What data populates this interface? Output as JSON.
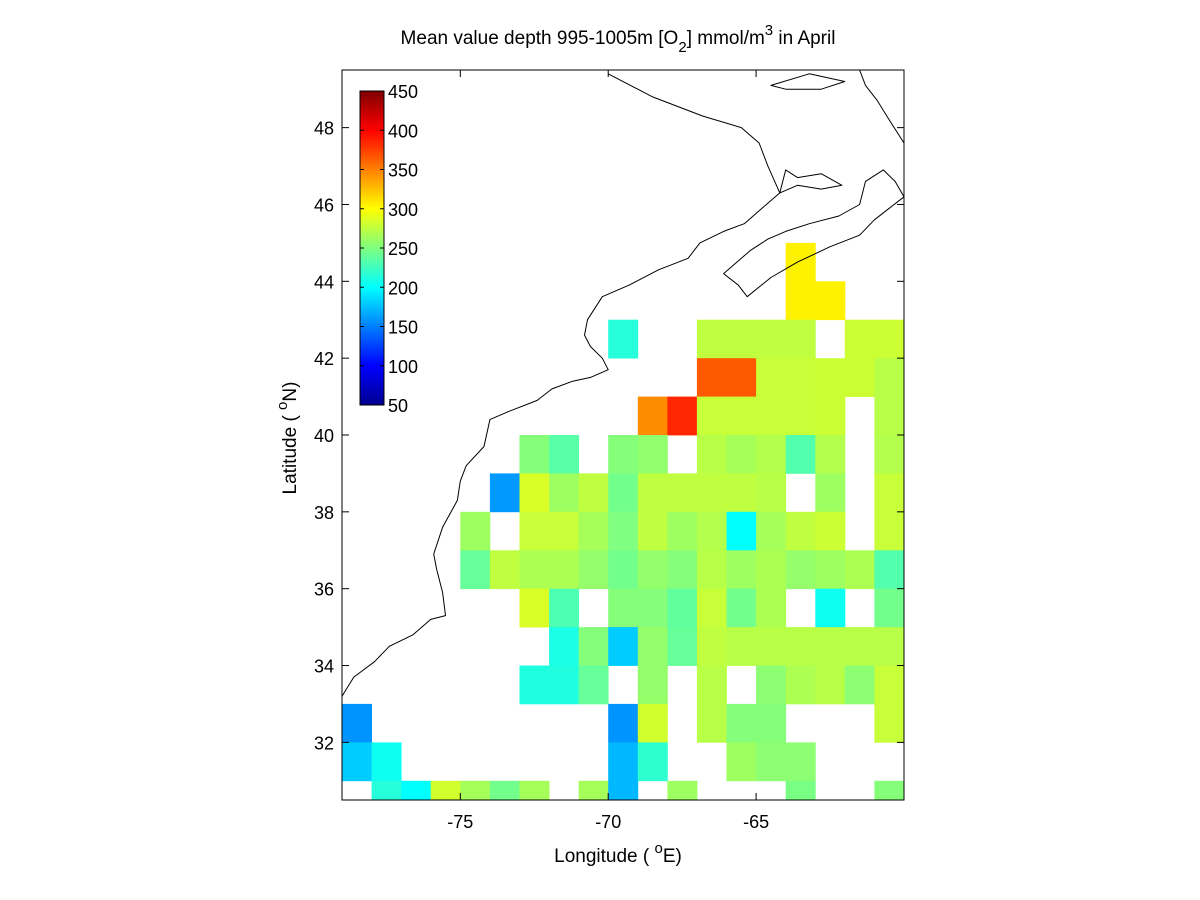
{
  "chart_data": {
    "type": "heatmap",
    "title": {
      "prefix": "Mean value depth 995-1005m [O",
      "sub": "2",
      "mid": "] mmol/m",
      "sup": "3",
      "suffix": " in April"
    },
    "xlabel": {
      "prefix": "Longitude ( ",
      "sup": "o",
      "suffix": "E)"
    },
    "ylabel": {
      "prefix": "Latitude ( ",
      "sup": "o",
      "suffix": "N)"
    },
    "xlim": [
      -79,
      -60
    ],
    "ylim": [
      30.5,
      49.5
    ],
    "xticks": [
      -75,
      -70,
      -65
    ],
    "yticks": [
      32,
      34,
      36,
      38,
      40,
      42,
      44,
      46,
      48
    ],
    "grid": false,
    "colorbar": {
      "placement": "top-left",
      "min": 50,
      "max": 450,
      "ticks": [
        50,
        100,
        150,
        200,
        250,
        300,
        350,
        400,
        450
      ],
      "colormap": "jet"
    },
    "cell_size_deg": 1,
    "cells": [
      [
        -63.5,
        44.5,
        305
      ],
      [
        -63.5,
        43.5,
        305
      ],
      [
        -62.5,
        43.5,
        305
      ],
      [
        -69.5,
        42.5,
        215
      ],
      [
        -66.5,
        42.5,
        275
      ],
      [
        -65.5,
        42.5,
        275
      ],
      [
        -64.5,
        42.5,
        275
      ],
      [
        -63.5,
        42.5,
        275
      ],
      [
        -61.5,
        42.5,
        280
      ],
      [
        -60.5,
        42.5,
        280
      ],
      [
        -66.5,
        41.5,
        365
      ],
      [
        -65.5,
        41.5,
        365
      ],
      [
        -64.5,
        41.5,
        278
      ],
      [
        -63.5,
        41.5,
        278
      ],
      [
        -62.5,
        41.5,
        280
      ],
      [
        -61.5,
        41.5,
        280
      ],
      [
        -60.5,
        41.5,
        272
      ],
      [
        -68.5,
        40.5,
        345
      ],
      [
        -67.5,
        40.5,
        385
      ],
      [
        -66.5,
        40.5,
        278
      ],
      [
        -65.5,
        40.5,
        278
      ],
      [
        -64.5,
        40.5,
        278
      ],
      [
        -63.5,
        40.5,
        278
      ],
      [
        -62.5,
        40.5,
        280
      ],
      [
        -60.5,
        40.5,
        272
      ],
      [
        -72.5,
        39.5,
        252
      ],
      [
        -71.5,
        39.5,
        235
      ],
      [
        -69.5,
        39.5,
        252
      ],
      [
        -68.5,
        39.5,
        257
      ],
      [
        -66.5,
        39.5,
        272
      ],
      [
        -65.5,
        39.5,
        265
      ],
      [
        -64.5,
        39.5,
        270
      ],
      [
        -63.5,
        39.5,
        232
      ],
      [
        -62.5,
        39.5,
        270
      ],
      [
        -60.5,
        39.5,
        270
      ],
      [
        -73.5,
        38.5,
        160
      ],
      [
        -72.5,
        38.5,
        285
      ],
      [
        -71.5,
        38.5,
        262
      ],
      [
        -70.5,
        38.5,
        275
      ],
      [
        -69.5,
        38.5,
        245
      ],
      [
        -68.5,
        38.5,
        275
      ],
      [
        -67.5,
        38.5,
        275
      ],
      [
        -66.5,
        38.5,
        275
      ],
      [
        -65.5,
        38.5,
        275
      ],
      [
        -64.5,
        38.5,
        272
      ],
      [
        -62.5,
        38.5,
        262
      ],
      [
        -60.5,
        38.5,
        278
      ],
      [
        -74.5,
        37.5,
        262
      ],
      [
        -72.5,
        37.5,
        278
      ],
      [
        -71.5,
        37.5,
        278
      ],
      [
        -70.5,
        37.5,
        265
      ],
      [
        -69.5,
        37.5,
        250
      ],
      [
        -68.5,
        37.5,
        275
      ],
      [
        -67.5,
        37.5,
        262
      ],
      [
        -66.5,
        37.5,
        270
      ],
      [
        -65.5,
        37.5,
        200
      ],
      [
        -64.5,
        37.5,
        265
      ],
      [
        -63.5,
        37.5,
        275
      ],
      [
        -62.5,
        37.5,
        280
      ],
      [
        -60.5,
        37.5,
        278
      ],
      [
        -74.5,
        36.5,
        240
      ],
      [
        -73.5,
        36.5,
        275
      ],
      [
        -72.5,
        36.5,
        268
      ],
      [
        -71.5,
        36.5,
        268
      ],
      [
        -70.5,
        36.5,
        258
      ],
      [
        -69.5,
        36.5,
        245
      ],
      [
        -68.5,
        36.5,
        258
      ],
      [
        -67.5,
        36.5,
        252
      ],
      [
        -66.5,
        36.5,
        272
      ],
      [
        -65.5,
        36.5,
        262
      ],
      [
        -64.5,
        36.5,
        268
      ],
      [
        -63.5,
        36.5,
        258
      ],
      [
        -62.5,
        36.5,
        262
      ],
      [
        -61.5,
        36.5,
        268
      ],
      [
        -60.5,
        36.5,
        232
      ],
      [
        -72.5,
        35.5,
        285
      ],
      [
        -71.5,
        35.5,
        230
      ],
      [
        -69.5,
        35.5,
        252
      ],
      [
        -68.5,
        35.5,
        252
      ],
      [
        -67.5,
        35.5,
        238
      ],
      [
        -66.5,
        35.5,
        278
      ],
      [
        -65.5,
        35.5,
        245
      ],
      [
        -64.5,
        35.5,
        268
      ],
      [
        -62.5,
        35.5,
        205
      ],
      [
        -60.5,
        35.5,
        245
      ],
      [
        -71.5,
        34.5,
        210
      ],
      [
        -70.5,
        34.5,
        252
      ],
      [
        -69.5,
        34.5,
        180
      ],
      [
        -68.5,
        34.5,
        258
      ],
      [
        -67.5,
        34.5,
        240
      ],
      [
        -66.5,
        34.5,
        275
      ],
      [
        -65.5,
        34.5,
        272
      ],
      [
        -64.5,
        34.5,
        272
      ],
      [
        -63.5,
        34.5,
        272
      ],
      [
        -62.5,
        34.5,
        272
      ],
      [
        -61.5,
        34.5,
        272
      ],
      [
        -60.5,
        34.5,
        272
      ],
      [
        -72.5,
        33.5,
        212
      ],
      [
        -71.5,
        33.5,
        212
      ],
      [
        -70.5,
        33.5,
        240
      ],
      [
        -68.5,
        33.5,
        258
      ],
      [
        -66.5,
        33.5,
        272
      ],
      [
        -64.5,
        33.5,
        255
      ],
      [
        -63.5,
        33.5,
        268
      ],
      [
        -62.5,
        33.5,
        272
      ],
      [
        -61.5,
        33.5,
        255
      ],
      [
        -60.5,
        33.5,
        278
      ],
      [
        -78.5,
        32.5,
        158
      ],
      [
        -69.5,
        32.5,
        158
      ],
      [
        -68.5,
        32.5,
        282
      ],
      [
        -66.5,
        32.5,
        272
      ],
      [
        -65.5,
        32.5,
        252
      ],
      [
        -64.5,
        32.5,
        252
      ],
      [
        -60.5,
        32.5,
        278
      ],
      [
        -78.5,
        31.5,
        180
      ],
      [
        -77.5,
        31.5,
        205
      ],
      [
        -69.5,
        31.5,
        172
      ],
      [
        -68.5,
        31.5,
        218
      ],
      [
        -65.5,
        31.5,
        262
      ],
      [
        -64.5,
        31.5,
        255
      ],
      [
        -63.5,
        31.5,
        255
      ],
      [
        -77.5,
        30.5,
        215
      ],
      [
        -76.5,
        30.5,
        200
      ],
      [
        -75.5,
        30.5,
        282
      ],
      [
        -74.5,
        30.5,
        265
      ],
      [
        -73.5,
        30.5,
        245
      ],
      [
        -72.5,
        30.5,
        265
      ],
      [
        -70.5,
        30.5,
        265
      ],
      [
        -69.5,
        30.5,
        172
      ],
      [
        -67.5,
        30.5,
        262
      ],
      [
        -63.5,
        30.5,
        248
      ],
      [
        -60.5,
        30.5,
        252
      ]
    ],
    "coastline": [
      [
        -79.0,
        33.2
      ],
      [
        -78.6,
        33.7
      ],
      [
        -77.9,
        34.1
      ],
      [
        -77.4,
        34.5
      ],
      [
        -76.6,
        34.8
      ],
      [
        -76.0,
        35.2
      ],
      [
        -75.5,
        35.3
      ],
      [
        -75.6,
        35.9
      ],
      [
        -75.8,
        36.5
      ],
      [
        -75.9,
        36.9
      ],
      [
        -75.6,
        37.6
      ],
      [
        -75.1,
        38.3
      ],
      [
        -75.0,
        38.8
      ],
      [
        -74.8,
        39.2
      ],
      [
        -74.2,
        39.7
      ],
      [
        -74.0,
        40.4
      ],
      [
        -73.4,
        40.6
      ],
      [
        -72.4,
        40.9
      ],
      [
        -71.9,
        41.2
      ],
      [
        -71.2,
        41.4
      ],
      [
        -70.6,
        41.5
      ],
      [
        -70.0,
        41.7
      ],
      [
        -70.2,
        42.0
      ],
      [
        -70.6,
        42.3
      ],
      [
        -70.8,
        42.6
      ],
      [
        -70.7,
        43.0
      ],
      [
        -70.2,
        43.6
      ],
      [
        -69.3,
        43.9
      ],
      [
        -68.3,
        44.3
      ],
      [
        -67.3,
        44.6
      ],
      [
        -66.9,
        45.0
      ],
      [
        -66.1,
        45.3
      ],
      [
        -65.4,
        45.5
      ],
      [
        -64.8,
        45.9
      ],
      [
        -64.2,
        46.3
      ],
      [
        -64.6,
        47.0
      ],
      [
        -64.9,
        47.6
      ],
      [
        -65.5,
        48.0
      ],
      [
        -66.8,
        48.3
      ],
      [
        -68.5,
        48.8
      ],
      [
        -70.0,
        49.4
      ]
    ],
    "coastline_ns": [
      [
        -66.1,
        44.2
      ],
      [
        -65.6,
        43.9
      ],
      [
        -65.3,
        43.6
      ],
      [
        -64.5,
        44.1
      ],
      [
        -63.6,
        44.5
      ],
      [
        -62.5,
        44.9
      ],
      [
        -61.5,
        45.2
      ],
      [
        -61.0,
        45.6
      ],
      [
        -60.5,
        45.9
      ],
      [
        -60.0,
        46.2
      ],
      [
        -60.3,
        46.6
      ],
      [
        -60.7,
        46.9
      ],
      [
        -61.3,
        46.6
      ],
      [
        -61.5,
        46.0
      ],
      [
        -62.2,
        45.7
      ],
      [
        -63.2,
        45.5
      ],
      [
        -64.0,
        45.3
      ],
      [
        -64.6,
        45.1
      ],
      [
        -65.2,
        44.8
      ],
      [
        -66.1,
        44.2
      ]
    ],
    "coastline_nf": [
      [
        -60.0,
        47.6
      ],
      [
        -60.5,
        48.2
      ],
      [
        -60.9,
        48.7
      ],
      [
        -61.3,
        49.1
      ],
      [
        -61.5,
        49.5
      ]
    ],
    "coastline_pei": [
      [
        -64.2,
        46.3
      ],
      [
        -63.6,
        46.5
      ],
      [
        -62.8,
        46.4
      ],
      [
        -62.1,
        46.5
      ],
      [
        -62.8,
        46.8
      ],
      [
        -63.6,
        46.7
      ],
      [
        -64.0,
        46.9
      ],
      [
        -64.2,
        46.3
      ]
    ],
    "coastline_ant": [
      [
        -64.5,
        49.1
      ],
      [
        -63.2,
        49.4
      ],
      [
        -62.0,
        49.2
      ],
      [
        -62.8,
        49.0
      ],
      [
        -64.0,
        49.0
      ],
      [
        -64.5,
        49.1
      ]
    ]
  }
}
